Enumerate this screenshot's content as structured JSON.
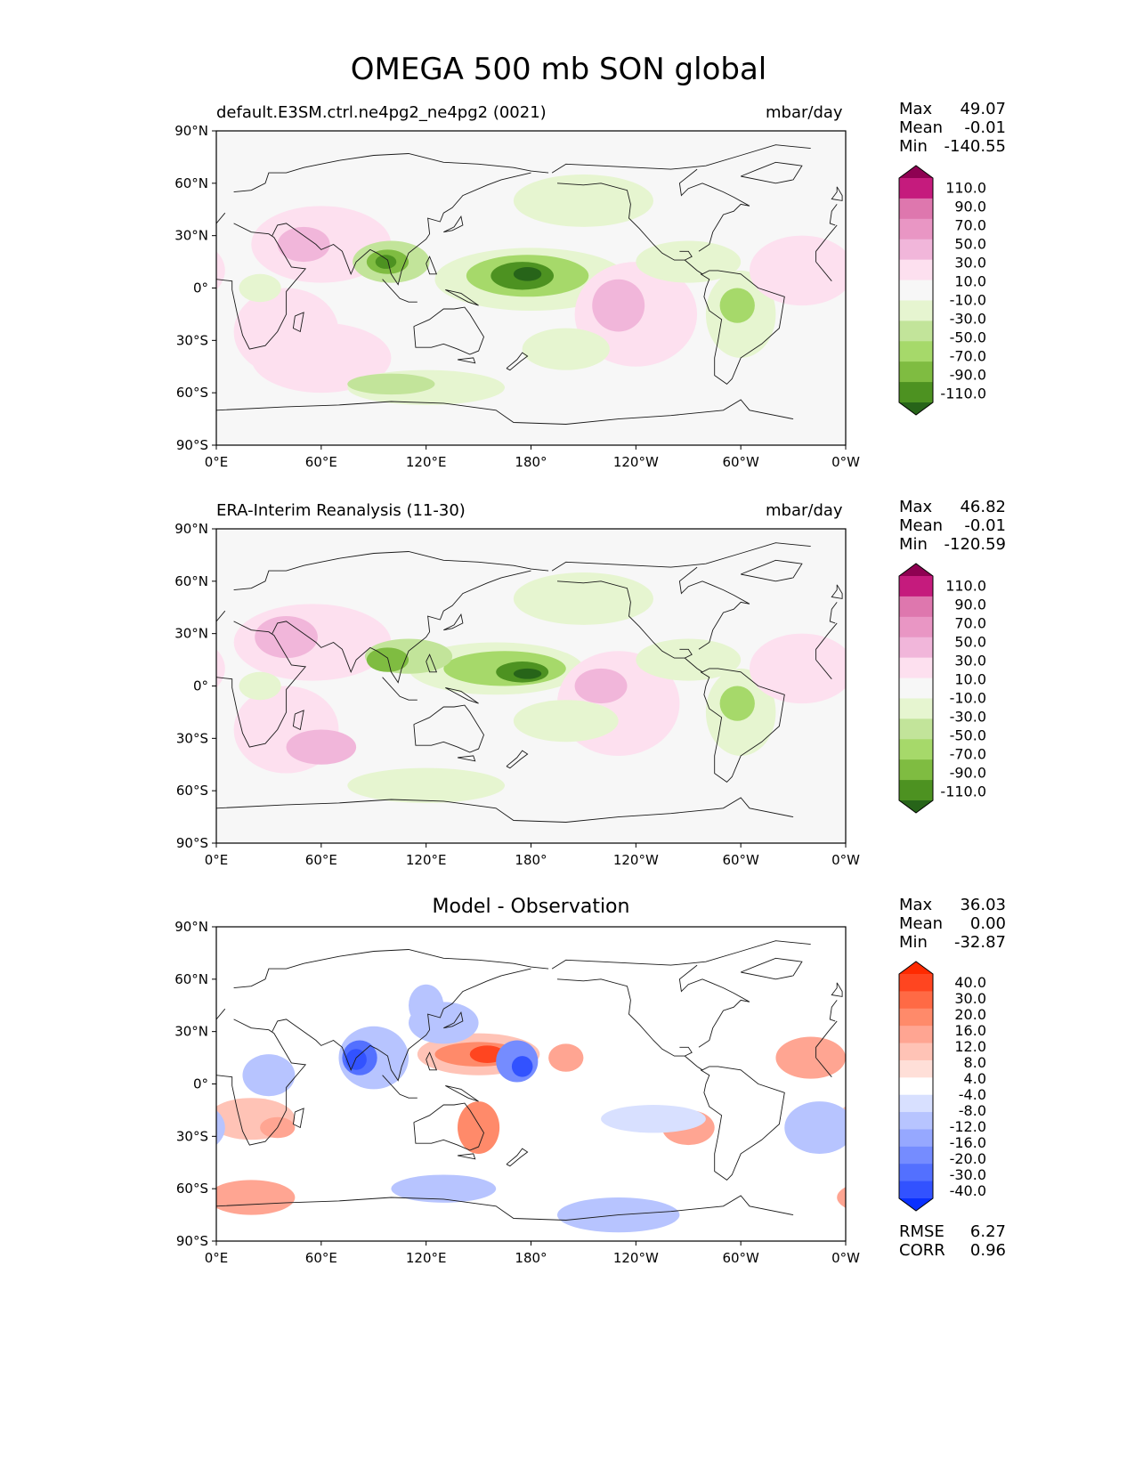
{
  "figure_title": "OMEGA 500 mb SON global",
  "colors": {
    "coast": "#1a1a1a",
    "field_background": "#f7f7f7",
    "diff_background": "#ffffff"
  },
  "chart_data": [
    {
      "type": "heatmap",
      "title": "default.E3SM.ctrl.ne4pg2_ne4pg2 (0021)",
      "units": "mbar/day",
      "xticks": [
        "0°E",
        "60°E",
        "120°E",
        "180°",
        "120°W",
        "60°W",
        "0°W"
      ],
      "yticks": [
        "90°N",
        "60°N",
        "30°N",
        "0°",
        "30°S",
        "60°S",
        "90°S"
      ],
      "xlim": [
        0,
        360
      ],
      "ylim": [
        -90,
        90
      ],
      "stats": [
        {
          "label": "Max",
          "value": "49.07"
        },
        {
          "label": "Mean",
          "value": "-0.01"
        },
        {
          "label": "Min",
          "value": "-140.55"
        }
      ],
      "colorbar": {
        "levels": [
          "110.0",
          "90.0",
          "70.0",
          "50.0",
          "30.0",
          "10.0",
          "-10.0",
          "-30.0",
          "-50.0",
          "-70.0",
          "-90.0",
          "-110.0"
        ],
        "colors": [
          "#8e0152",
          "#c51b7d",
          "#de77ae",
          "#e996c4",
          "#f1b6da",
          "#fde0ef",
          "#f7f7f7",
          "#e6f5d0",
          "#c2e49a",
          "#a6d96a",
          "#7fbc41",
          "#4d9221",
          "#276419"
        ]
      }
    },
    {
      "type": "heatmap",
      "title": "ERA-Interim Reanalysis (11-30)",
      "units": "mbar/day",
      "xticks": [
        "0°E",
        "60°E",
        "120°E",
        "180°",
        "120°W",
        "60°W",
        "0°W"
      ],
      "yticks": [
        "90°N",
        "60°N",
        "30°N",
        "0°",
        "30°S",
        "60°S",
        "90°S"
      ],
      "xlim": [
        0,
        360
      ],
      "ylim": [
        -90,
        90
      ],
      "stats": [
        {
          "label": "Max",
          "value": "46.82"
        },
        {
          "label": "Mean",
          "value": "-0.01"
        },
        {
          "label": "Min",
          "value": "-120.59"
        }
      ],
      "colorbar": {
        "levels": [
          "110.0",
          "90.0",
          "70.0",
          "50.0",
          "30.0",
          "10.0",
          "-10.0",
          "-30.0",
          "-50.0",
          "-70.0",
          "-90.0",
          "-110.0"
        ],
        "colors": [
          "#8e0152",
          "#c51b7d",
          "#de77ae",
          "#e996c4",
          "#f1b6da",
          "#fde0ef",
          "#f7f7f7",
          "#e6f5d0",
          "#c2e49a",
          "#a6d96a",
          "#7fbc41",
          "#4d9221",
          "#276419"
        ]
      }
    },
    {
      "type": "heatmap",
      "title": "Model - Observation",
      "units": "",
      "xticks": [
        "0°E",
        "60°E",
        "120°E",
        "180°",
        "120°W",
        "60°W",
        "0°W"
      ],
      "yticks": [
        "90°N",
        "60°N",
        "30°N",
        "0°",
        "30°S",
        "60°S",
        "90°S"
      ],
      "xlim": [
        0,
        360
      ],
      "ylim": [
        -90,
        90
      ],
      "stats": [
        {
          "label": "Max",
          "value": "36.03"
        },
        {
          "label": "Mean",
          "value": "0.00"
        },
        {
          "label": "Min",
          "value": "-32.87"
        }
      ],
      "extra_stats": [
        {
          "label": "RMSE",
          "value": "6.27"
        },
        {
          "label": "CORR",
          "value": "0.96"
        }
      ],
      "colorbar": {
        "levels": [
          "40.0",
          "30.0",
          "20.0",
          "16.0",
          "12.0",
          "8.0",
          "4.0",
          "-4.0",
          "-8.0",
          "-12.0",
          "-16.0",
          "-20.0",
          "-30.0",
          "-40.0"
        ],
        "colors": [
          "#ff2a00",
          "#ff4520",
          "#ff6a45",
          "#ff8a6a",
          "#ffa592",
          "#ffc3b6",
          "#ffdfd8",
          "#ffffff",
          "#d8e0ff",
          "#b7c4ff",
          "#96a8ff",
          "#758cff",
          "#5370ff",
          "#3252ff",
          "#0a30ff"
        ]
      }
    }
  ]
}
